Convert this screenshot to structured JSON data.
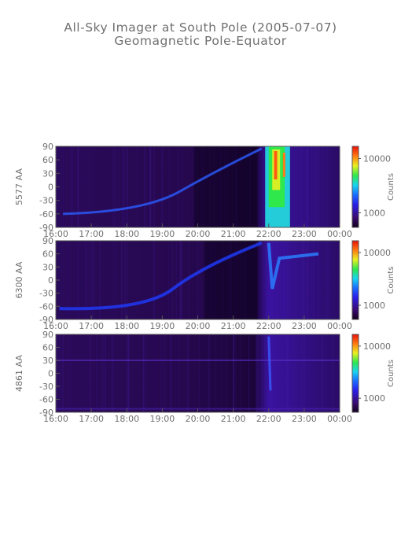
{
  "title": "All-Sky Imager at South Pole (2005-07-07)",
  "subtitle": "Geomagnetic Pole-Equator",
  "chart_data": [
    {
      "type": "heatmap",
      "ylabel": "5577 AA",
      "x_ticks": [
        "16:00",
        "17:00",
        "18:00",
        "19:00",
        "20:00",
        "21:00",
        "22:00",
        "23:00",
        "00:00"
      ],
      "y_ticks": [
        "90",
        "60",
        "30",
        "0",
        "-30",
        "-60",
        "-90"
      ],
      "ylim": [
        -90,
        90
      ],
      "colorbar": {
        "label": "Counts",
        "ticks": [
          "10000",
          "1000"
        ],
        "scale": "log"
      }
    },
    {
      "type": "heatmap",
      "ylabel": "6300 AA",
      "x_ticks": [
        "16:00",
        "17:00",
        "18:00",
        "19:00",
        "20:00",
        "21:00",
        "22:00",
        "23:00",
        "00:00"
      ],
      "y_ticks": [
        "90",
        "60",
        "30",
        "0",
        "-30",
        "-60",
        "-90"
      ],
      "ylim": [
        -90,
        90
      ],
      "colorbar": {
        "label": "Counts",
        "ticks": [
          "10000",
          "1000"
        ],
        "scale": "log"
      }
    },
    {
      "type": "heatmap",
      "ylabel": "4861 AA",
      "x_ticks": [
        "16:00",
        "17:00",
        "18:00",
        "19:00",
        "20:00",
        "21:00",
        "22:00",
        "23:00",
        "00:00"
      ],
      "y_ticks": [
        "90",
        "60",
        "30",
        "0",
        "-30",
        "-60",
        "-90"
      ],
      "ylim": [
        -90,
        90
      ],
      "colorbar": {
        "label": "Counts",
        "ticks": [
          "10000",
          "1000"
        ],
        "scale": "log"
      }
    }
  ]
}
